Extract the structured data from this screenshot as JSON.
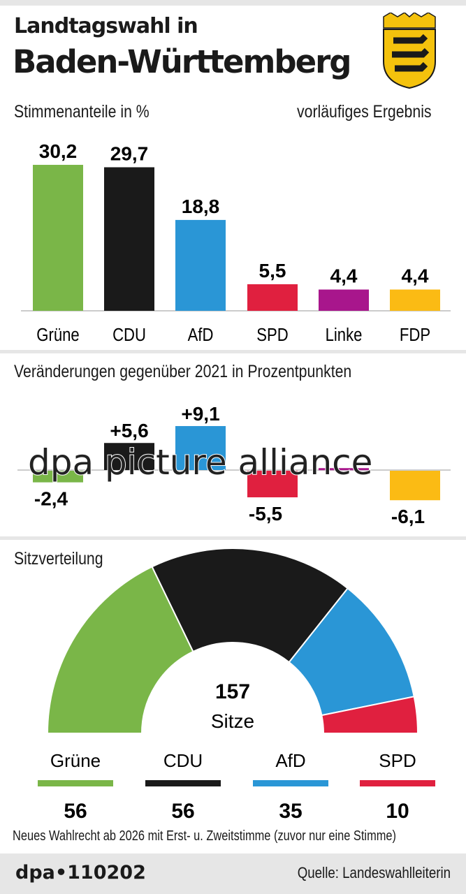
{
  "header": {
    "title_line1": "Landtagswahl in",
    "title_line2": "Baden-Württemberg",
    "crest": "baden-wuerttemberg-coat-of-arms"
  },
  "colors": {
    "Grüne": "#7ab648",
    "CDU": "#1a1a1a",
    "AfD": "#2a96d6",
    "SPD": "#e0203f",
    "Linke": "#a8168c",
    "FDP": "#fbbb14"
  },
  "chart_data": [
    {
      "type": "bar",
      "title": "Stimmenanteile in %",
      "note": "vorläufiges Ergebnis",
      "categories": [
        "Grüne",
        "CDU",
        "AfD",
        "SPD",
        "Linke",
        "FDP"
      ],
      "values": [
        30.2,
        29.7,
        18.8,
        5.5,
        4.4,
        4.4
      ],
      "value_labels": [
        "30,2",
        "29,7",
        "18,8",
        "5,5",
        "4,4",
        "4,4"
      ]
    },
    {
      "type": "bar",
      "title": "Veränderungen gegenüber 2021 in Prozentpunkten",
      "categories": [
        "Grüne",
        "CDU",
        "AfD",
        "SPD",
        "Linke",
        "FDP"
      ],
      "values": [
        -2.4,
        5.6,
        9.1,
        -5.5,
        0.4,
        -6.1
      ],
      "value_labels": [
        "-2,4",
        "+5,6",
        "+9,1",
        "-5,5",
        "",
        "-6,1"
      ]
    },
    {
      "type": "pie",
      "subtype": "semicircle",
      "title": "Sitzverteilung",
      "categories": [
        "Grüne",
        "CDU",
        "AfD",
        "SPD"
      ],
      "values": [
        56,
        56,
        35,
        10
      ],
      "total": "157",
      "total_label": "Sitze"
    }
  ],
  "watermark": "dpa picture alliance",
  "footnote": "Neues Wahlrecht ab 2026 mit Erst- u. Zweitstimme (zuvor nur eine Stimme)",
  "footer": {
    "id": "dpa•110202",
    "source": "Quelle: Landeswahlleiterin"
  }
}
